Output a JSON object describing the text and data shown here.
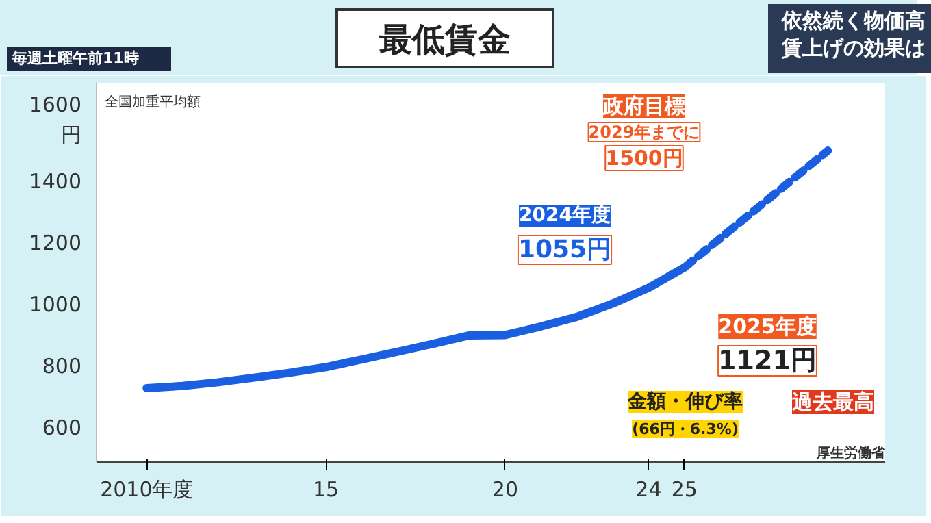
{
  "chart_data": {
    "type": "line",
    "title": "最低賃金",
    "subtitle": "依然続く物価高賃上げの効果は",
    "ylabel": "全国加重平均額",
    "x": [
      2010,
      2011,
      2012,
      2013,
      2014,
      2015,
      2016,
      2017,
      2018,
      2019,
      2020,
      2021,
      2022,
      2023,
      2024,
      2025
    ],
    "series": [
      {
        "color": "#1a5fe0",
        "values": [
          730,
          737,
          749,
          764,
          780,
          798,
          823,
          848,
          874,
          901,
          902,
          930,
          961,
          1004,
          1055,
          1121
        ],
        "line_style": "solid"
      },
      {
        "color": "#1a5fe0",
        "x": [
          2025,
          2029
        ],
        "values": [
          1121,
          1500
        ],
        "line_style": "dashed"
      }
    ],
    "xlim": [
      2008.6,
      2030.6
    ],
    "ylim": [
      490,
      1720
    ],
    "xticks": [
      {
        "value": 2010,
        "label": "2010年度"
      },
      {
        "value": 2015,
        "label": "15"
      },
      {
        "value": 2020,
        "label": "20"
      },
      {
        "value": 2024,
        "label": "24"
      },
      {
        "value": 2025,
        "label": "25"
      }
    ],
    "yticks": [
      600,
      800,
      1000,
      1200,
      1400,
      {
        "value": 1600,
        "label": "1600\n円"
      }
    ],
    "grid": false,
    "marker": "none",
    "annotations": [
      "毎週土曜午前11時",
      "政府目標",
      "2029年までに",
      "1500円",
      "2024年度",
      "1055円",
      "2025年度",
      "1121円",
      "金額・伸び率",
      "(66円・6.3%)",
      "過去最高",
      "厚生労働省"
    ]
  }
}
